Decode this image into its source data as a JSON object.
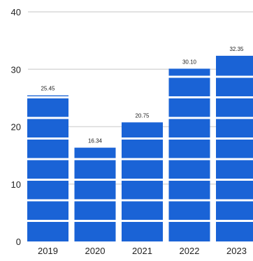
{
  "chart_data": {
    "type": "bar",
    "categories": [
      "2019",
      "2020",
      "2021",
      "2022",
      "2023"
    ],
    "values": [
      25.45,
      16.34,
      20.75,
      30.1,
      32.35
    ],
    "data_labels": [
      "25.45",
      "16.34",
      "20.75",
      "30.10",
      "32.35"
    ],
    "title": "",
    "xlabel": "",
    "ylabel": "",
    "ylim": [
      0,
      40
    ],
    "y_ticks": [
      "0",
      "10",
      "20",
      "30",
      "40"
    ],
    "grid": true,
    "bar_color": "#1a63d6",
    "bar_stripe_color": "#ffffff",
    "grid_color": "#d9d9d9",
    "text_color": "#222222"
  }
}
